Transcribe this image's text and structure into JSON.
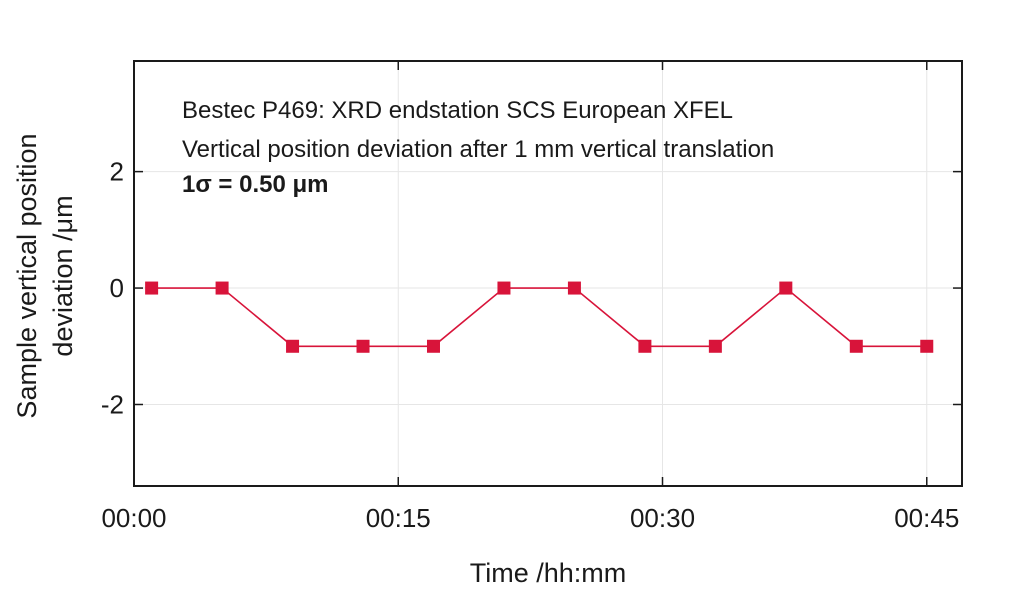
{
  "chart_data": {
    "type": "line",
    "x_unit": "minutes",
    "x": [
      1,
      5,
      9,
      13,
      17,
      21,
      25,
      29,
      33,
      37,
      41,
      45
    ],
    "series": [
      {
        "values": [
          0,
          0,
          -1,
          -1,
          -1,
          0,
          0,
          -1,
          -1,
          0,
          -1,
          -1
        ],
        "color": "#d8143a",
        "marker": "square"
      }
    ],
    "xlim": [
      0,
      47
    ],
    "ylim": [
      -3.4,
      3.9
    ],
    "x_ticks": [
      0,
      15,
      30,
      45
    ],
    "x_tick_labels": [
      "00:00",
      "00:15",
      "00:30",
      "00:45"
    ],
    "y_ticks": [
      -2,
      0,
      2
    ],
    "y_tick_labels": [
      "-2",
      "0",
      "2"
    ],
    "xlabel": "Time /hh:mm",
    "ylabel_lines": [
      "Sample vertical position",
      "deviation /μm"
    ],
    "annotations": [
      "Bestec P469: XRD endstation SCS European XFEL",
      "Vertical position deviation after 1 mm vertical translation",
      "1σ = 0.50 μm"
    ],
    "grid": true,
    "legend": "none"
  }
}
